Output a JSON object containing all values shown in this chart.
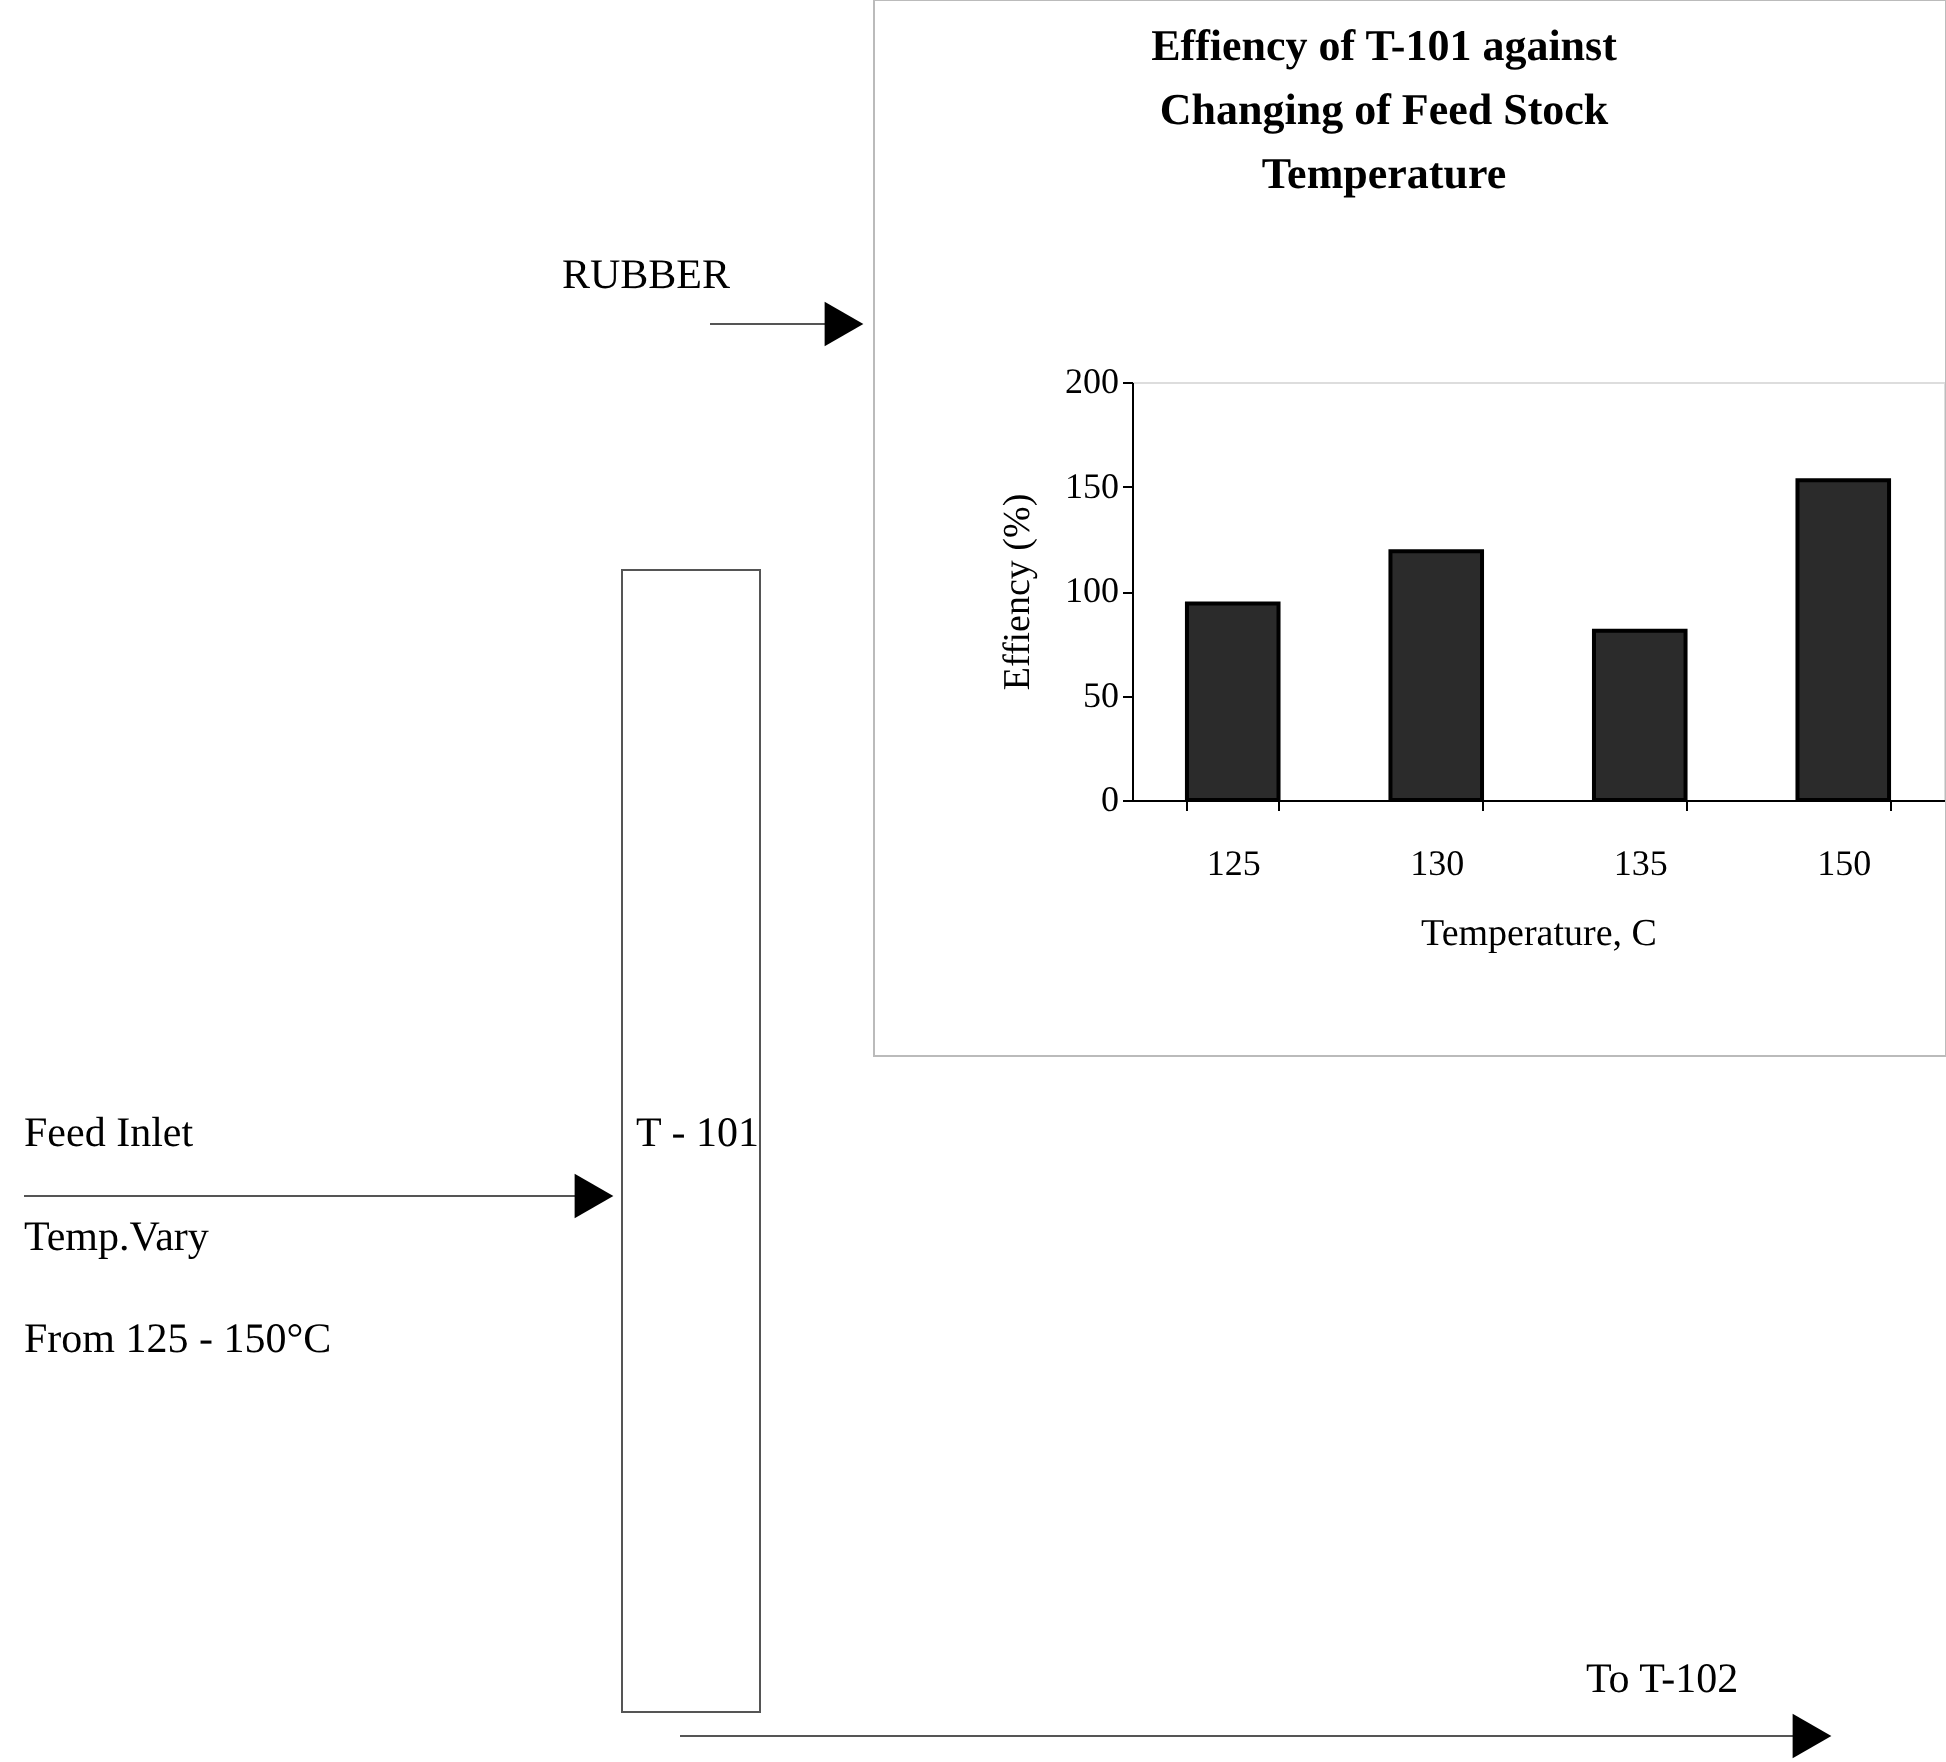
{
  "chart_data": {
    "type": "bar",
    "title": "Effiency of T-101 against Changing of Feed Stock Temperature",
    "xlabel": "Temperature, C",
    "ylabel": "Effiency (%)",
    "categories": [
      "125",
      "130",
      "135",
      "150"
    ],
    "values": [
      94,
      119,
      81,
      153
    ],
    "color": "#2b2b2b",
    "ylim": [
      0,
      200
    ],
    "yticks": [
      0,
      50,
      100,
      150,
      200
    ],
    "annotations": [
      "RUBBER",
      "Feed Inlet",
      "Temp.Vary",
      "From 125 - 150°C",
      "T - 101",
      "To T-102"
    ]
  }
}
